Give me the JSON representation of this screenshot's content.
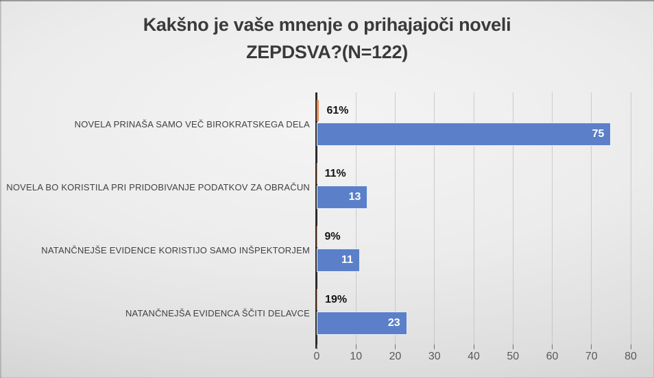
{
  "title_lines": [
    "Kakšno je vaše mnenje o prihajajoči noveli",
    "ZEPDSVA?(N=122)"
  ],
  "chart_data": {
    "type": "bar",
    "orientation": "horizontal",
    "title": "Kakšno je vaše mnenje o prihajajoči noveli ZEPDSVA?(N=122)",
    "sample_size_note": "N=122",
    "categories": [
      "NOVELA PRINAŠA SAMO VEČ BIROKRATSKEGA DELA",
      "NOVELA BO KORISTILA PRI PRIDOBIVANJE PODATKOV ZA OBRAČUN",
      "NATANČNEJŠE EVIDENCE KORISTIJO SAMO INŠPEKTORJEM",
      "NATANČNEJŠA EVIDENCA ŠČITI DELAVCE"
    ],
    "series": [
      {
        "name": "count",
        "values": [
          75,
          13,
          11,
          23
        ],
        "data_labels": [
          "75",
          "13",
          "11",
          "23"
        ],
        "color": "#5b80c9",
        "label_position": "inside-end",
        "label_color": "#ffffff"
      },
      {
        "name": "percent",
        "values": [
          0.61,
          0.11,
          0.09,
          0.19
        ],
        "data_labels": [
          "61%",
          "11%",
          "9%",
          "19%"
        ],
        "color": "#ed8b55",
        "label_position": "outside-end",
        "label_color": "#141414"
      }
    ],
    "x_axis": {
      "min": 0,
      "max": 80,
      "tick_step": 10,
      "ticks": [
        0,
        10,
        20,
        30,
        40,
        50,
        60,
        70,
        80
      ]
    },
    "y_axis": {
      "line_color": "#2b2b2b"
    },
    "grid": true,
    "legend": false,
    "colors": {
      "bar_blue": "#5b80c9",
      "bar_orange": "#ed8b55",
      "gridline": "#bdbdbd",
      "axis_line": "#2b2b2b",
      "tick_label": "#595959",
      "category_label": "#404040",
      "title": "#3a3a3a"
    }
  }
}
